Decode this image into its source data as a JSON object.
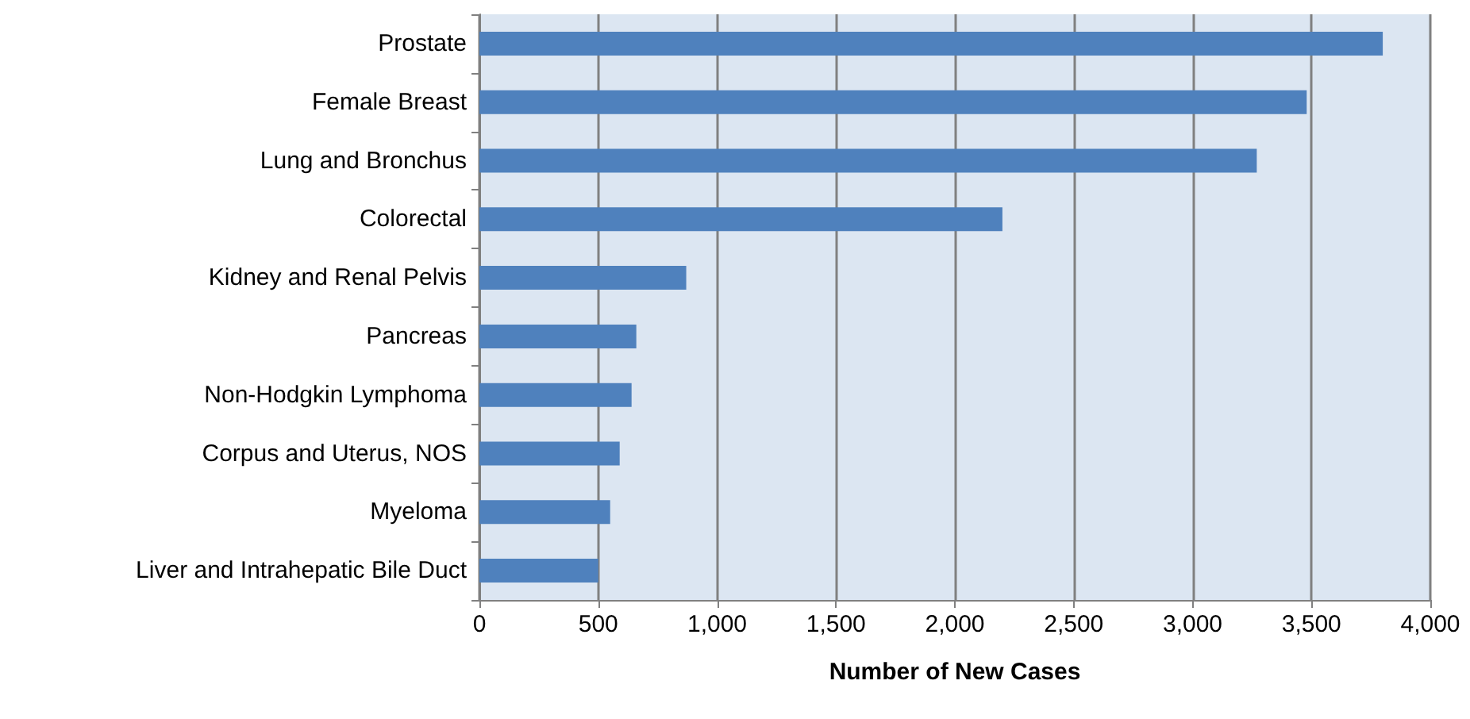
{
  "chart_data": {
    "type": "bar",
    "orientation": "horizontal",
    "xlabel": "Number of New Cases",
    "categories": [
      "Prostate",
      "Female Breast",
      "Lung and Bronchus",
      "Colorectal",
      "Kidney and Renal Pelvis",
      "Pancreas",
      "Non-Hodgkin Lymphoma",
      "Corpus and Uterus, NOS",
      "Myeloma",
      "Liver and Intrahepatic Bile Duct"
    ],
    "values": [
      3800,
      3480,
      3270,
      2200,
      870,
      660,
      640,
      590,
      550,
      500
    ],
    "color": "#4f81bd",
    "xlim": [
      0,
      4000
    ],
    "xticks": [
      {
        "value": 0,
        "label": "0"
      },
      {
        "value": 500,
        "label": "500"
      },
      {
        "value": 1000,
        "label": "1,000"
      },
      {
        "value": 1500,
        "label": "1,500"
      },
      {
        "value": 2000,
        "label": "2,000"
      },
      {
        "value": 2500,
        "label": "2,500"
      },
      {
        "value": 3000,
        "label": "3,000"
      },
      {
        "value": 3500,
        "label": "3,500"
      },
      {
        "value": 4000,
        "label": "4,000"
      }
    ],
    "grid": "x"
  }
}
